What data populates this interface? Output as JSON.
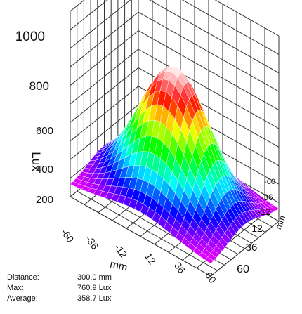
{
  "chart_data": {
    "type": "surface3d",
    "zlabel": "Lux",
    "xlabel": "mm",
    "ylabel": "mm",
    "z_ticks": [
      "200",
      "400",
      "600",
      "800",
      "1000"
    ],
    "x_ticks": [
      "-60",
      "-36",
      "-12",
      "12",
      "36",
      "60"
    ],
    "y_ticks": [
      "-60",
      "-36",
      "-12",
      "12",
      "36",
      "60"
    ],
    "zlim": [
      0,
      1000
    ],
    "xlim": [
      -60,
      60
    ],
    "ylim": [
      -60,
      60
    ],
    "peak_value": 760.9,
    "colormap": [
      "#ff00ff",
      "#0000ff",
      "#00ffff",
      "#00ff00",
      "#ffff00",
      "#ff0000",
      "#ffffff"
    ],
    "grid": true
  },
  "stats": [
    {
      "label": "Distance:",
      "value": "300.0 mm"
    },
    {
      "label": "Max:",
      "value": "760.9 Lux"
    },
    {
      "label": "Average:",
      "value": "358.7 Lux"
    }
  ]
}
